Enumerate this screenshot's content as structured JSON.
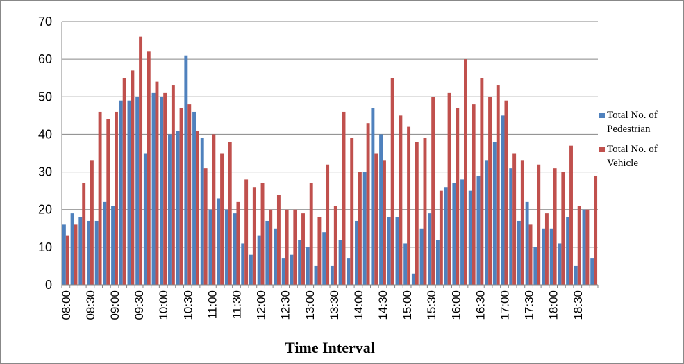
{
  "chart_data": {
    "type": "bar",
    "x_label": "Time Interval",
    "categories": [
      "08:00",
      null,
      null,
      "08:30",
      null,
      null,
      "09:00",
      null,
      null,
      "09:30",
      null,
      null,
      "10:00",
      null,
      null,
      "10:30",
      null,
      null,
      "11:00",
      null,
      null,
      "11:30",
      null,
      null,
      "12:00",
      null,
      null,
      "12:30",
      null,
      null,
      "13:00",
      null,
      null,
      "13:30",
      null,
      null,
      "14:00",
      null,
      null,
      "14:30",
      null,
      null,
      "15:00",
      null,
      null,
      "15:30",
      null,
      null,
      "16:00",
      null,
      null,
      "16:30",
      null,
      null,
      "17:00",
      null,
      null,
      "17:30",
      null,
      null,
      "18:00",
      null,
      null,
      "18:30",
      null,
      null
    ],
    "series": [
      {
        "name": "Total No. of Pedestrian",
        "color": "#4f81bd",
        "values": [
          16,
          19,
          18,
          17,
          17,
          22,
          21,
          49,
          49,
          50,
          35,
          51,
          50,
          40,
          41,
          61,
          46,
          39,
          20,
          23,
          20,
          19,
          11,
          8,
          13,
          17,
          15,
          7,
          8,
          12,
          10,
          5,
          14,
          5,
          12,
          7,
          17,
          30,
          47,
          40,
          18,
          18,
          11,
          3,
          15,
          19,
          12,
          26,
          27,
          28,
          25,
          29,
          33,
          38,
          45,
          31,
          17,
          22,
          10,
          15,
          15,
          11,
          18,
          5,
          20,
          7
        ]
      },
      {
        "name": "Total No. of Vehicle",
        "color": "#c0504d",
        "values": [
          13,
          16,
          27,
          33,
          46,
          44,
          46,
          55,
          57,
          66,
          62,
          54,
          51,
          53,
          47,
          48,
          41,
          31,
          40,
          35,
          38,
          22,
          28,
          26,
          27,
          20,
          24,
          20,
          20,
          19,
          27,
          18,
          32,
          21,
          46,
          39,
          30,
          43,
          35,
          33,
          55,
          45,
          42,
          38,
          39,
          50,
          25,
          51,
          47,
          60,
          48,
          55,
          50,
          53,
          49,
          35,
          33,
          16,
          32,
          19,
          31,
          30,
          37,
          21,
          20,
          29
        ]
      }
    ],
    "ylim": [
      0,
      70
    ],
    "yticks": [
      0,
      10,
      20,
      30,
      40,
      50,
      60,
      70
    ],
    "grid": true,
    "legend": "right"
  }
}
